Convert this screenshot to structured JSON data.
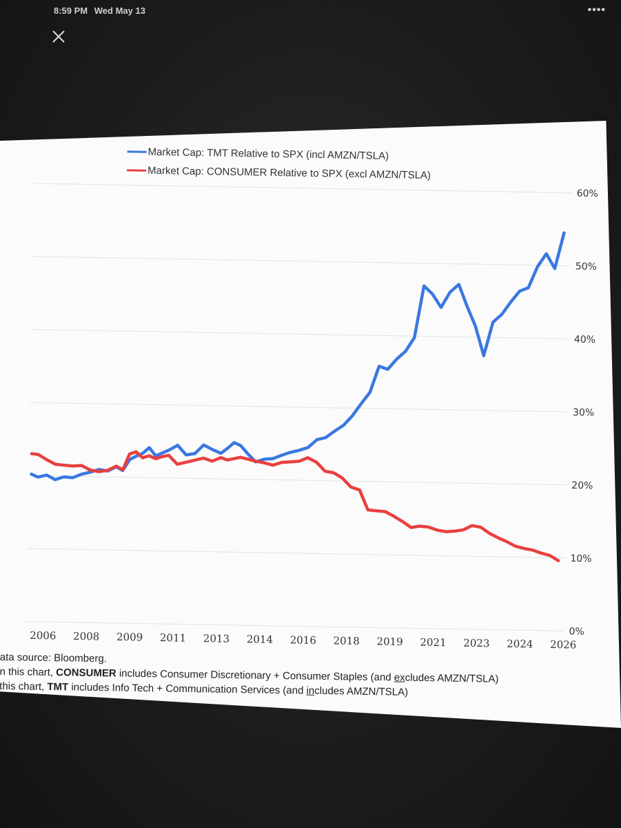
{
  "status_bar": {
    "time": "8:59 PM",
    "date": "Wed May 13"
  },
  "menu": {
    "icon": "more-dots-icon"
  },
  "close_button": {
    "icon": "close-icon"
  },
  "colors": {
    "tmt": "#3a78e0",
    "consumer": "#e8403f",
    "grid": "#e2e2e2",
    "axis_text": "#333333"
  },
  "chart_data": {
    "type": "line",
    "x_tick_labels": [
      "2006",
      "2008",
      "2009",
      "2011",
      "2013",
      "2014",
      "2016",
      "2018",
      "2019",
      "2021",
      "2023",
      "2024",
      "2026"
    ],
    "y_tick_labels": [
      "0%",
      "10%",
      "20%",
      "30%",
      "40%",
      "50%",
      "60%"
    ],
    "ylim": [
      0,
      60
    ],
    "y_unit": "%",
    "grid": "horizontal",
    "legend_position": "top-center",
    "series": [
      {
        "name": "Market Cap: TMT Relative to SPX (incl AMZN/TSLA)",
        "color": "#3a78e0",
        "points": [
          [
            "2005-09",
            20.2
          ],
          [
            "2005-12",
            19.8
          ],
          [
            "2006-04",
            20.1
          ],
          [
            "2006-08",
            19.5
          ],
          [
            "2006-12",
            19.9
          ],
          [
            "2007-04",
            19.8
          ],
          [
            "2007-08",
            20.3
          ],
          [
            "2007-12",
            20.6
          ],
          [
            "2008-04",
            21.0
          ],
          [
            "2008-08",
            20.8
          ],
          [
            "2008-12",
            21.4
          ],
          [
            "2009-03",
            20.9
          ],
          [
            "2009-06",
            22.4
          ],
          [
            "2009-09",
            22.9
          ],
          [
            "2009-12",
            23.3
          ],
          [
            "2010-03",
            24.1
          ],
          [
            "2010-06",
            23.0
          ],
          [
            "2010-09",
            23.4
          ],
          [
            "2010-12",
            23.8
          ],
          [
            "2011-04",
            24.5
          ],
          [
            "2011-08",
            23.2
          ],
          [
            "2011-12",
            23.4
          ],
          [
            "2012-04",
            24.6
          ],
          [
            "2012-08",
            24.0
          ],
          [
            "2012-12",
            23.5
          ],
          [
            "2013-03",
            24.2
          ],
          [
            "2013-06",
            25.0
          ],
          [
            "2013-09",
            24.6
          ],
          [
            "2013-12",
            23.6
          ],
          [
            "2014-04",
            22.4
          ],
          [
            "2014-08",
            22.8
          ],
          [
            "2014-12",
            22.9
          ],
          [
            "2015-04",
            23.4
          ],
          [
            "2015-08",
            23.8
          ],
          [
            "2015-12",
            24.1
          ],
          [
            "2016-04",
            24.5
          ],
          [
            "2016-08",
            25.6
          ],
          [
            "2016-12",
            25.9
          ],
          [
            "2017-04",
            26.8
          ],
          [
            "2017-08",
            27.6
          ],
          [
            "2017-12",
            28.9
          ],
          [
            "2018-04",
            30.6
          ],
          [
            "2018-08",
            32.2
          ],
          [
            "2018-12",
            35.8
          ],
          [
            "2019-04",
            35.4
          ],
          [
            "2019-08",
            36.8
          ],
          [
            "2019-12",
            37.9
          ],
          [
            "2020-04",
            39.8
          ],
          [
            "2020-08",
            46.9
          ],
          [
            "2020-12",
            45.8
          ],
          [
            "2021-04",
            44.0
          ],
          [
            "2021-08",
            46.1
          ],
          [
            "2021-12",
            47.2
          ],
          [
            "2022-04",
            44.2
          ],
          [
            "2022-08",
            41.5
          ],
          [
            "2022-12",
            37.5
          ],
          [
            "2023-04",
            42.1
          ],
          [
            "2023-08",
            43.2
          ],
          [
            "2023-12",
            44.9
          ],
          [
            "2024-04",
            46.4
          ],
          [
            "2024-08",
            46.9
          ],
          [
            "2024-12",
            49.8
          ],
          [
            "2025-04",
            51.6
          ],
          [
            "2025-08",
            49.6
          ],
          [
            "2025-12",
            54.5
          ]
        ]
      },
      {
        "name": "Market Cap: CONSUMER Relative to SPX (excl AMZN/TSLA)",
        "color": "#e8403f",
        "points": [
          [
            "2005-09",
            23.0
          ],
          [
            "2005-12",
            22.9
          ],
          [
            "2006-04",
            22.2
          ],
          [
            "2006-08",
            21.6
          ],
          [
            "2006-12",
            21.5
          ],
          [
            "2007-04",
            21.4
          ],
          [
            "2007-08",
            21.5
          ],
          [
            "2007-12",
            20.9
          ],
          [
            "2008-04",
            20.7
          ],
          [
            "2008-08",
            20.9
          ],
          [
            "2008-12",
            21.5
          ],
          [
            "2009-03",
            21.0
          ],
          [
            "2009-06",
            23.2
          ],
          [
            "2009-09",
            23.5
          ],
          [
            "2009-12",
            22.7
          ],
          [
            "2010-03",
            23.0
          ],
          [
            "2010-06",
            22.6
          ],
          [
            "2010-09",
            22.9
          ],
          [
            "2010-12",
            23.1
          ],
          [
            "2011-04",
            21.9
          ],
          [
            "2011-08",
            22.2
          ],
          [
            "2011-12",
            22.5
          ],
          [
            "2012-04",
            22.8
          ],
          [
            "2012-08",
            22.4
          ],
          [
            "2012-12",
            22.9
          ],
          [
            "2013-03",
            22.6
          ],
          [
            "2013-06",
            22.8
          ],
          [
            "2013-09",
            23.0
          ],
          [
            "2013-12",
            22.8
          ],
          [
            "2014-04",
            22.5
          ],
          [
            "2014-08",
            22.3
          ],
          [
            "2014-12",
            22.0
          ],
          [
            "2015-04",
            22.4
          ],
          [
            "2015-08",
            22.5
          ],
          [
            "2015-12",
            22.6
          ],
          [
            "2016-04",
            23.1
          ],
          [
            "2016-08",
            22.5
          ],
          [
            "2016-12",
            21.3
          ],
          [
            "2017-04",
            21.1
          ],
          [
            "2017-08",
            20.4
          ],
          [
            "2017-12",
            19.2
          ],
          [
            "2018-04",
            18.8
          ],
          [
            "2018-08",
            16.1
          ],
          [
            "2018-12",
            16.0
          ],
          [
            "2019-04",
            15.9
          ],
          [
            "2019-08",
            15.3
          ],
          [
            "2019-12",
            14.6
          ],
          [
            "2020-04",
            13.8
          ],
          [
            "2020-08",
            14.0
          ],
          [
            "2020-12",
            13.9
          ],
          [
            "2021-04",
            13.5
          ],
          [
            "2021-08",
            13.3
          ],
          [
            "2021-12",
            13.4
          ],
          [
            "2022-04",
            13.6
          ],
          [
            "2022-08",
            14.2
          ],
          [
            "2022-12",
            14.0
          ],
          [
            "2023-04",
            13.2
          ],
          [
            "2023-08",
            12.6
          ],
          [
            "2023-12",
            12.1
          ],
          [
            "2024-04",
            11.5
          ],
          [
            "2024-08",
            11.2
          ],
          [
            "2024-12",
            11.0
          ],
          [
            "2025-04",
            10.6
          ],
          [
            "2025-08",
            10.3
          ],
          [
            "2025-12",
            9.6
          ]
        ]
      }
    ]
  },
  "footnotes": {
    "line1": "ata source: Bloomberg.",
    "line2_a": "n this chart, ",
    "line2_b": "CONSUMER",
    "line2_c": " includes Consumer Discretionary + Consumer Staples (and ",
    "line2_d": "ex",
    "line2_e": "cludes AMZN/TSLA)",
    "line3_a": " this chart, ",
    "line3_b": "TMT",
    "line3_c": " includes Info Tech + Communication Services (and ",
    "line3_d": "in",
    "line3_e": "cludes AMZN/TSLA)"
  }
}
